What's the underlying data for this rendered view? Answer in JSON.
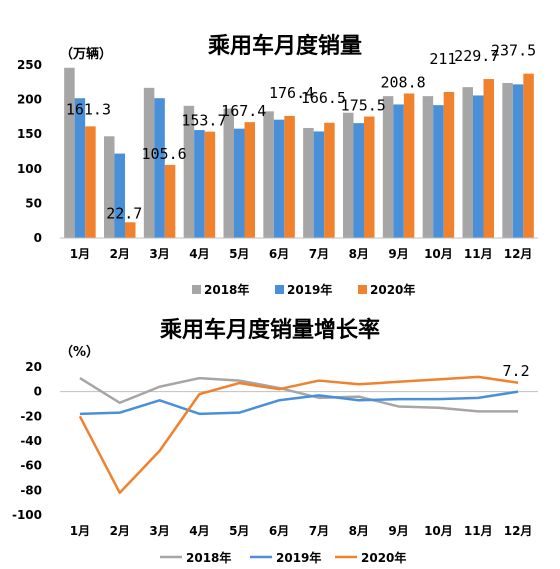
{
  "chart_data": [
    {
      "type": "bar",
      "title": "乘用车月度销量",
      "unit": "（万辆）",
      "categories": [
        "1月",
        "2月",
        "3月",
        "4月",
        "5月",
        "6月",
        "7月",
        "8月",
        "9月",
        "10月",
        "11月",
        "12月"
      ],
      "ylim": [
        0,
        250
      ],
      "yticks": [
        "0",
        "50",
        "100",
        "150",
        "200",
        "250"
      ],
      "series": [
        {
          "name": "2018年",
          "color": "#A6A6A6",
          "values": [
            246,
            147,
            217,
            191,
            187,
            183,
            159,
            181,
            205,
            205,
            218,
            224
          ]
        },
        {
          "name": "2019年",
          "color": "#4A90D9",
          "values": [
            202,
            122,
            202,
            156,
            158,
            171,
            154,
            166,
            193,
            192,
            206,
            222
          ]
        },
        {
          "name": "2020年",
          "color": "#F0812D",
          "values": [
            161.3,
            22.7,
            105.6,
            153.7,
            167.4,
            176.4,
            166.5,
            175.5,
            208.8,
            211,
            229.7,
            237.5
          ]
        }
      ],
      "data_labels": [
        "161.3",
        "22.7",
        "105.6",
        "153.7",
        "167.4",
        "176.4",
        "166.5",
        "175.5",
        "208.8",
        "211",
        "229.7",
        "237.5"
      ],
      "legend_position": "bottom"
    },
    {
      "type": "line",
      "title": "乘用车月度销量增长率",
      "unit": "（%）",
      "categories": [
        "1月",
        "2月",
        "3月",
        "4月",
        "5月",
        "6月",
        "7月",
        "8月",
        "9月",
        "10月",
        "11月",
        "12月"
      ],
      "ylim": [
        -100,
        20
      ],
      "yticks": [
        "20",
        "0",
        "-20",
        "-40",
        "-60",
        "-80",
        "-100"
      ],
      "series": [
        {
          "name": "2018年",
          "color": "#A6A6A6",
          "values": [
            11,
            -9,
            4,
            11,
            9,
            3,
            -5,
            -4,
            -12,
            -13,
            -16,
            -16
          ]
        },
        {
          "name": "2019年",
          "color": "#4A90D9",
          "values": [
            -18,
            -17,
            -7,
            -18,
            -17,
            -7,
            -3,
            -7,
            -6,
            -6,
            -5,
            0
          ]
        },
        {
          "name": "2020年",
          "color": "#F0812D",
          "values": [
            -20,
            -82,
            -48,
            -2,
            7,
            2,
            9,
            6,
            8,
            10,
            12,
            7.2
          ]
        }
      ],
      "data_labels": [
        "7.2"
      ],
      "legend_position": "bottom"
    }
  ]
}
